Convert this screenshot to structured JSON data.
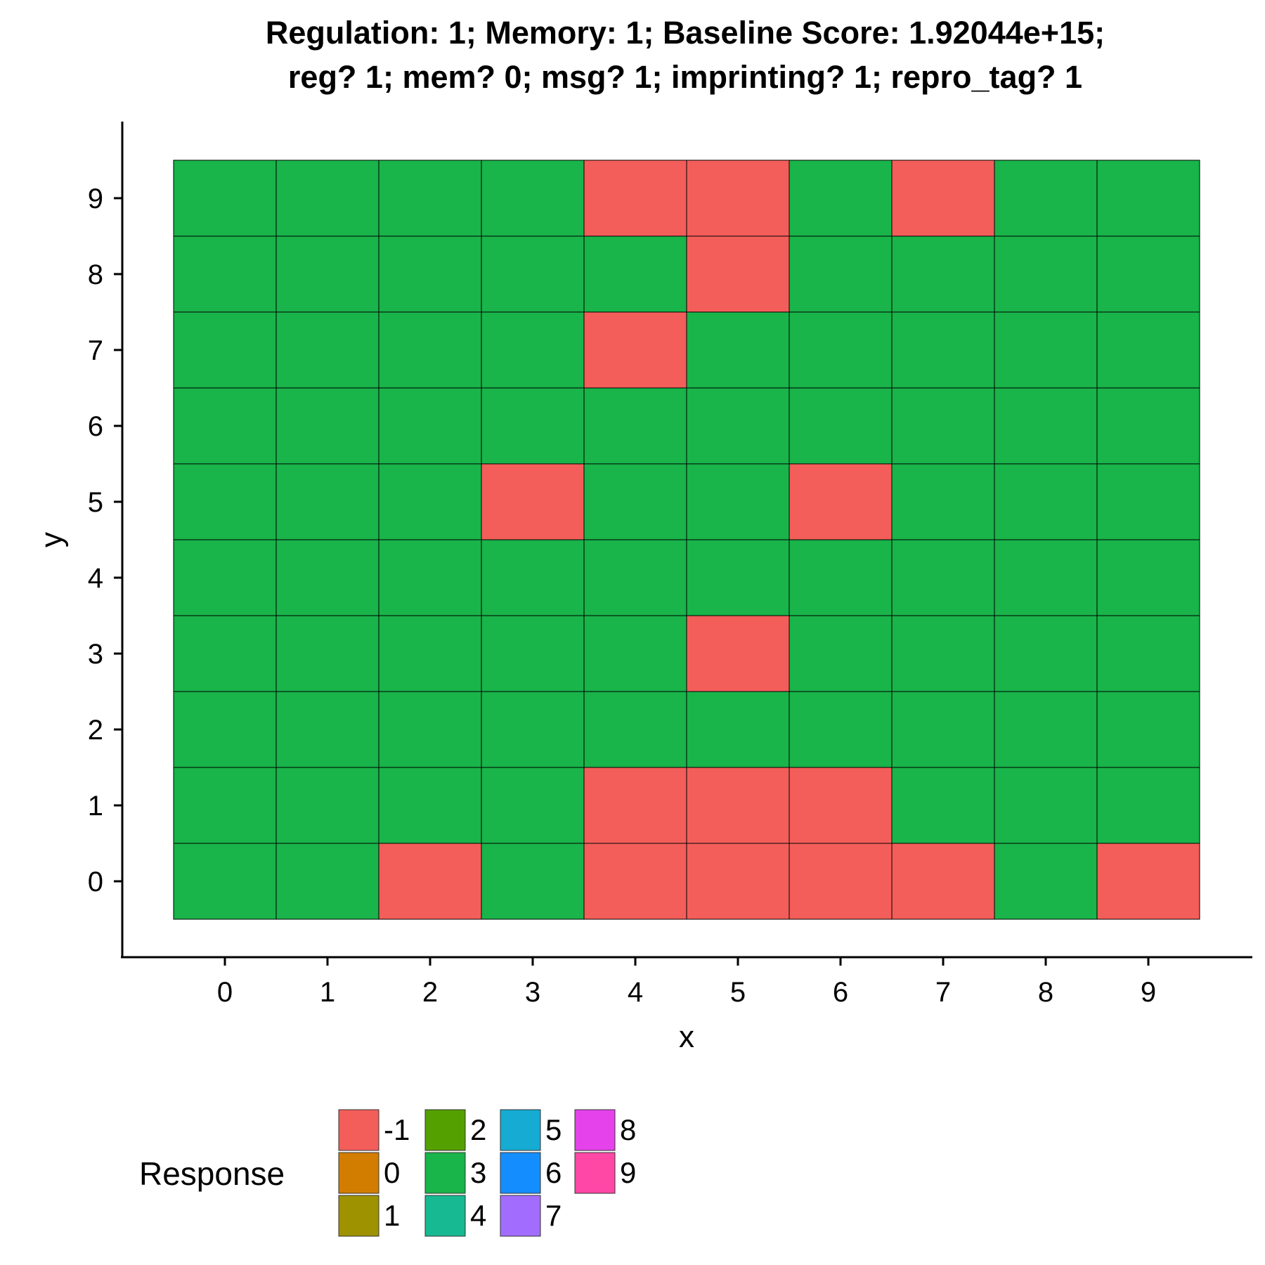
{
  "chart_data": {
    "type": "heatmap",
    "title_lines": [
      "Regulation: 1; Memory: 1; Baseline Score: 1.92044e+15;",
      "reg? 1; mem? 0; msg? 1; imprinting? 1; repro_tag? 1"
    ],
    "xlabel": "x",
    "ylabel": "y",
    "x_ticks": [
      "0",
      "1",
      "2",
      "3",
      "4",
      "5",
      "6",
      "7",
      "8",
      "9"
    ],
    "y_ticks": [
      "0",
      "1",
      "2",
      "3",
      "4",
      "5",
      "6",
      "7",
      "8",
      "9"
    ],
    "xlim": [
      -0.5,
      9.5
    ],
    "ylim": [
      -0.5,
      9.5
    ],
    "grid": false,
    "legend_placement": "bottom-left",
    "legend": {
      "title": "Response",
      "entries": [
        {
          "label": "-1",
          "color": "#F35E5A"
        },
        {
          "label": "0",
          "color": "#D27D00"
        },
        {
          "label": "1",
          "color": "#9E9200"
        },
        {
          "label": "2",
          "color": "#54A000"
        },
        {
          "label": "3",
          "color": "#19B44A"
        },
        {
          "label": "4",
          "color": "#17B992"
        },
        {
          "label": "5",
          "color": "#15ABD2"
        },
        {
          "label": "6",
          "color": "#148EFF"
        },
        {
          "label": "7",
          "color": "#A26DFF"
        },
        {
          "label": "8",
          "color": "#E542EC"
        },
        {
          "label": "9",
          "color": "#FF48A5"
        }
      ]
    },
    "grid_values_rows_from_y9_to_y0": [
      [
        3,
        3,
        3,
        3,
        -1,
        -1,
        3,
        -1,
        3,
        3
      ],
      [
        3,
        3,
        3,
        3,
        3,
        -1,
        3,
        3,
        3,
        3
      ],
      [
        3,
        3,
        3,
        3,
        -1,
        3,
        3,
        3,
        3,
        3
      ],
      [
        3,
        3,
        3,
        3,
        3,
        3,
        3,
        3,
        3,
        3
      ],
      [
        3,
        3,
        3,
        -1,
        3,
        3,
        -1,
        3,
        3,
        3
      ],
      [
        3,
        3,
        3,
        3,
        3,
        3,
        3,
        3,
        3,
        3
      ],
      [
        3,
        3,
        3,
        3,
        3,
        -1,
        3,
        3,
        3,
        3
      ],
      [
        3,
        3,
        3,
        3,
        3,
        3,
        3,
        3,
        3,
        3
      ],
      [
        3,
        3,
        3,
        3,
        -1,
        -1,
        -1,
        3,
        3,
        3
      ],
      [
        3,
        3,
        -1,
        3,
        -1,
        -1,
        -1,
        -1,
        3,
        -1
      ]
    ]
  }
}
